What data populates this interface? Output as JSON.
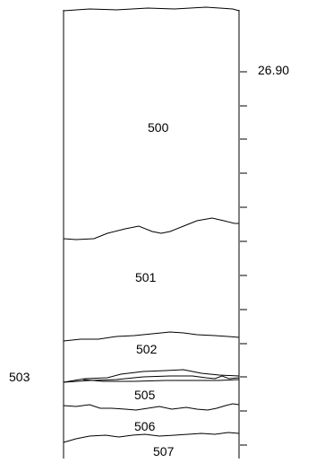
{
  "section": {
    "elevation_label": "26.90",
    "layers": [
      {
        "id": "500",
        "label": "500"
      },
      {
        "id": "501",
        "label": "501"
      },
      {
        "id": "502",
        "label": "502"
      },
      {
        "id": "503",
        "label": "503"
      },
      {
        "id": "505",
        "label": "505"
      },
      {
        "id": "506",
        "label": "506"
      },
      {
        "id": "507",
        "label": "507"
      }
    ]
  },
  "colors": {
    "line": "#000000",
    "background": "#ffffff"
  }
}
